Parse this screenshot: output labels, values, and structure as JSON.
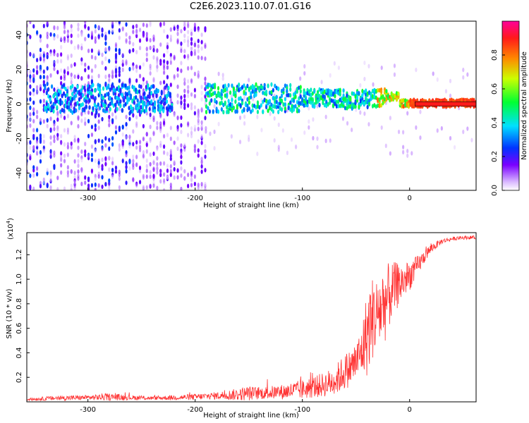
{
  "title": "C2E6.2023.110.07.01.G16",
  "chart_data": [
    {
      "type": "heatmap",
      "xlabel": "Height of straight line (km)",
      "ylabel": "Frequency (Hz)",
      "xlim": [
        -357,
        62
      ],
      "ylim": [
        -50,
        48
      ],
      "x_ticks": [
        -300,
        -200,
        -100,
        0
      ],
      "x_tick_labels": [
        "-300",
        "-200",
        "-100",
        "0"
      ],
      "y_ticks": [
        -40,
        -20,
        0,
        20,
        40
      ],
      "y_tick_labels": [
        "-40",
        "-20",
        "0",
        "20",
        "40"
      ],
      "colorbar": {
        "label": "Normalized spectral amplitude",
        "range": [
          0,
          1
        ],
        "ticks": [
          0.0,
          0.2,
          0.4,
          0.6,
          0.8
        ],
        "tick_labels": [
          "0.0",
          "0.2",
          "0.4",
          "0.6",
          "0.8"
        ],
        "colormap": "rainbow (white-purple-blue-cyan-green-yellow-red-magenta)"
      },
      "features": [
        {
          "description": "dominant signal band near 0 Hz",
          "x_range": [
            -340,
            62
          ],
          "freq_center": 2,
          "amplitude": "0.2-0.4, rising to ~0.9 above 0 km"
        },
        {
          "description": "band curves slightly downward",
          "x_range": [
            -60,
            -20
          ],
          "freq_center": -4
        },
        {
          "description": "broadband noise",
          "x_range": [
            -357,
            -190
          ],
          "freq_range": [
            -50,
            48
          ],
          "amplitude": "0.05-0.25"
        }
      ]
    },
    {
      "type": "line",
      "xlabel": "Height of straight line (km)",
      "ylabel": "SNR (10 * v/v)",
      "y_multiplier_label": "(x10",
      "y_multiplier_exp": "4",
      "y_multiplier_close": ")",
      "xlim": [
        -357,
        62
      ],
      "ylim": [
        0,
        1.38
      ],
      "x_ticks": [
        -300,
        -200,
        -100,
        0
      ],
      "x_tick_labels": [
        "-300",
        "-200",
        "-100",
        "0"
      ],
      "y_ticks": [
        0.2,
        0.4,
        0.6,
        0.8,
        1.0,
        1.2
      ],
      "y_tick_labels": [
        "0.2",
        "0.4",
        "0.6",
        "0.8",
        "1.0",
        "1.2"
      ],
      "series": [
        {
          "color": "#ff3333",
          "x": [
            -357,
            -330,
            -300,
            -280,
            -260,
            -240,
            -220,
            -200,
            -180,
            -160,
            -150,
            -140,
            -120,
            -100,
            -90,
            -80,
            -70,
            -60,
            -55,
            -50,
            -45,
            -40,
            -35,
            -30,
            -25,
            -20,
            -15,
            -10,
            -5,
            0,
            5,
            10,
            15,
            20,
            30,
            40,
            50,
            62
          ],
          "y": [
            0.02,
            0.03,
            0.035,
            0.04,
            0.035,
            0.03,
            0.035,
            0.04,
            0.05,
            0.06,
            0.07,
            0.07,
            0.08,
            0.1,
            0.12,
            0.14,
            0.17,
            0.25,
            0.28,
            0.33,
            0.4,
            0.55,
            0.68,
            0.72,
            0.78,
            0.85,
            0.92,
            0.96,
            0.99,
            1.03,
            1.08,
            1.14,
            1.2,
            1.25,
            1.31,
            1.33,
            1.34,
            1.34
          ],
          "noise_amp": [
            0.01,
            0.02,
            0.02,
            0.03,
            0.02,
            0.015,
            0.02,
            0.025,
            0.03,
            0.05,
            0.06,
            0.05,
            0.06,
            0.08,
            0.09,
            0.1,
            0.12,
            0.15,
            0.15,
            0.17,
            0.2,
            0.35,
            0.35,
            0.3,
            0.35,
            0.28,
            0.22,
            0.18,
            0.14,
            0.12,
            0.1,
            0.07,
            0.05,
            0.04,
            0.02,
            0.015,
            0.015,
            0.015
          ]
        }
      ]
    }
  ]
}
